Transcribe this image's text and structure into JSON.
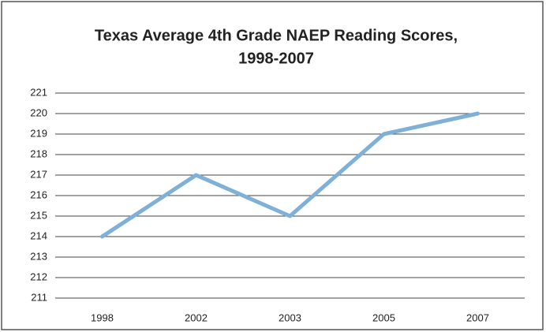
{
  "chart_data": {
    "type": "line",
    "title": [
      "Texas Average 4th Grade NAEP Reading Scores,",
      "1998-2007"
    ],
    "categories": [
      "1998",
      "2002",
      "2003",
      "2005",
      "2007"
    ],
    "values": [
      214,
      217,
      215,
      219,
      220
    ],
    "color": "#7fb0d8",
    "ylim": [
      211,
      221
    ],
    "yticks": [
      211,
      212,
      213,
      214,
      215,
      216,
      217,
      218,
      219,
      220,
      221
    ],
    "grid": true
  }
}
